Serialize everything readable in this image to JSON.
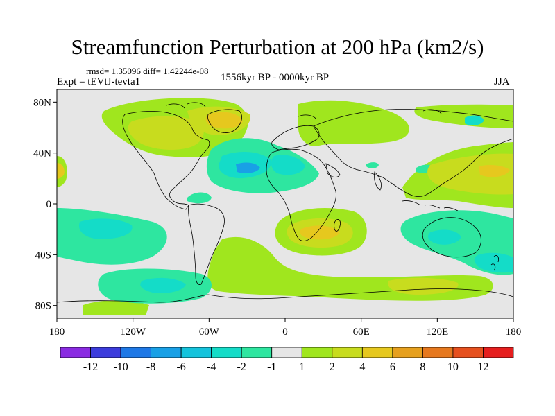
{
  "title": "Streamfunction Perturbation at 200 hPa (km2/s)",
  "stats": "rmsd= 1.35096 diff= 1.42244e-08",
  "experiment": "Expt = tEVtJ-tevta1",
  "period": "1556kyr BP - 0000kyr BP",
  "season": "JJA",
  "map": {
    "projection": "cylindrical equidistant",
    "lon_range": [
      -180,
      180
    ],
    "lat_range": [
      -90,
      90
    ],
    "lat_ticks": [
      {
        "value": 80,
        "label": "80N"
      },
      {
        "value": 40,
        "label": "40N"
      },
      {
        "value": 0,
        "label": "0"
      },
      {
        "value": -40,
        "label": "40S"
      },
      {
        "value": -80,
        "label": "80S"
      }
    ],
    "lon_ticks": [
      {
        "value": -180,
        "label": "180"
      },
      {
        "value": -120,
        "label": "120W"
      },
      {
        "value": -60,
        "label": "60W"
      },
      {
        "value": 0,
        "label": "0"
      },
      {
        "value": 60,
        "label": "60E"
      },
      {
        "value": 120,
        "label": "120E"
      },
      {
        "value": 180,
        "label": "180"
      }
    ]
  },
  "colorbar": {
    "levels": [
      "-12",
      "-10",
      "-8",
      "-6",
      "-4",
      "-2",
      "-1",
      "1",
      "2",
      "4",
      "6",
      "8",
      "10",
      "12"
    ],
    "colors": [
      "#8a2be2",
      "#3c3cdc",
      "#1e78e6",
      "#19a0e6",
      "#14c3dc",
      "#14dcc8",
      "#2ee6a0",
      "#e6e6e6",
      "#a0e61e",
      "#c8dc1e",
      "#e6c81e",
      "#e6a01e",
      "#e6781e",
      "#e6501e",
      "#e61e1e"
    ]
  },
  "features": [
    {
      "name": "tropical-atlantic-low",
      "lon": -25,
      "lat": 28,
      "color": "#2ee6a0"
    },
    {
      "name": "atlantic-low-core-1",
      "lon": -40,
      "lat": 28,
      "color": "#14dcc8"
    },
    {
      "name": "atlantic-low-core-2",
      "lon": -12,
      "lat": 28,
      "color": "#14dcc8"
    },
    {
      "name": "na-high-weak",
      "lon": -88,
      "lat": 65,
      "color": "#a0e61e"
    },
    {
      "name": "na-high-1",
      "lon": -100,
      "lat": 65,
      "color": "#c8dc1e"
    },
    {
      "name": "na-high-2",
      "lon": -75,
      "lat": 52,
      "color": "#c8dc1e"
    },
    {
      "name": "na-high-core",
      "lon": -65,
      "lat": 68,
      "color": "#e6c81e"
    },
    {
      "name": "west-pacific-high-belt",
      "lon": 120,
      "lat": 30,
      "color": "#a0e61e"
    },
    {
      "name": "west-pacific-high",
      "lon": 150,
      "lat": 28,
      "color": "#c8dc1e"
    },
    {
      "name": "west-pacific-high-core",
      "lon": 155,
      "lat": 28,
      "color": "#e6c81e"
    },
    {
      "name": "africa-high",
      "lon": 30,
      "lat": -22,
      "color": "#a0e61e"
    },
    {
      "name": "africa-high-inner",
      "lon": 30,
      "lat": -22,
      "color": "#c8dc1e"
    },
    {
      "name": "africa-high-core",
      "lon": 32,
      "lat": -24,
      "color": "#e6c81e"
    },
    {
      "name": "south-pacific-low",
      "lon": -130,
      "lat": -20,
      "color": "#2ee6a0"
    },
    {
      "name": "south-pacific-low-core",
      "lon": -130,
      "lat": -18,
      "color": "#14dcc8"
    },
    {
      "name": "australia-low",
      "lon": 130,
      "lat": -28,
      "color": "#14dcc8"
    },
    {
      "name": "tasman-low",
      "lon": 160,
      "lat": -47,
      "color": "#14dcc8"
    },
    {
      "name": "south-atlantic-high",
      "lon": 0,
      "lat": -55,
      "color": "#a0e61e"
    },
    {
      "name": "southern-ocean-high",
      "lon": 100,
      "lat": -68,
      "color": "#c8dc1e"
    },
    {
      "name": "amundsen-low",
      "lon": -95,
      "lat": -66,
      "color": "#14dcc8"
    }
  ]
}
